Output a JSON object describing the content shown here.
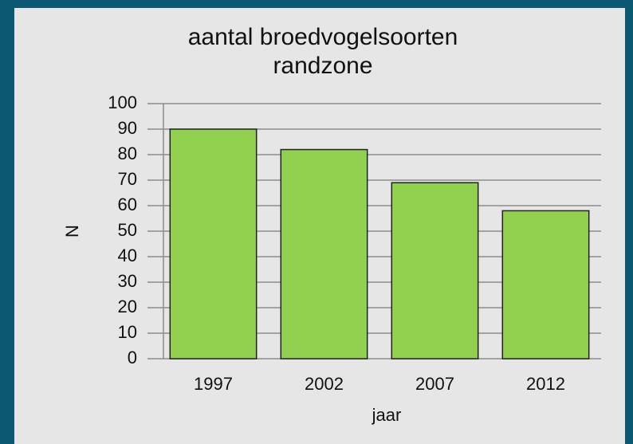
{
  "chart_data": {
    "type": "bar",
    "title": [
      "aantal broedvogelsoorten",
      "randzone"
    ],
    "xlabel": "jaar",
    "ylabel": "N",
    "categories": [
      "1997",
      "2002",
      "2007",
      "2012"
    ],
    "values": [
      90,
      82,
      69,
      58
    ],
    "color": "#92d050",
    "ylim": [
      0,
      100
    ],
    "yticks": [
      0,
      10,
      20,
      30,
      40,
      50,
      60,
      70,
      80,
      90,
      100
    ],
    "grid": true
  }
}
